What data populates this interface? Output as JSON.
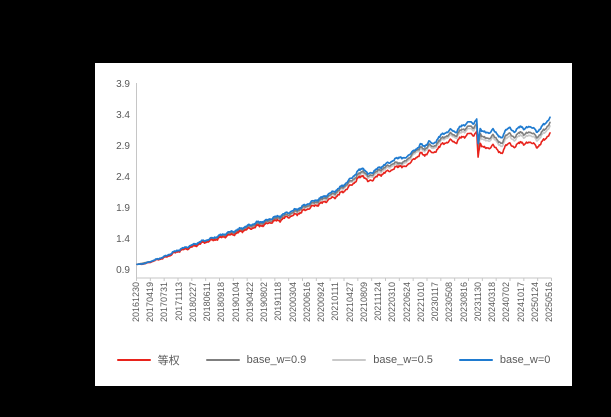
{
  "canvas": {
    "background": "#000000",
    "panel_background": "#ffffff",
    "axis_color": "#c6c6c6",
    "text_color": "#595959"
  },
  "chart_data": {
    "type": "line",
    "title": "",
    "xlabel": "",
    "ylabel": "",
    "grid": false,
    "legend_position": "bottom",
    "y_axis": {
      "min": 0.9,
      "max": 3.9,
      "ticks": [
        3.9,
        3.4,
        2.9,
        2.4,
        1.9,
        1.4,
        0.9
      ]
    },
    "x_axis": {
      "rotation": -90,
      "labels": [
        "20161230",
        "20170419",
        "20170731",
        "20171113",
        "20180227",
        "20180611",
        "20180918",
        "20190104",
        "20190422",
        "20190802",
        "20191118",
        "20200304",
        "20200616",
        "20200924",
        "20210111",
        "20210427",
        "20210809",
        "20211124",
        "20220310",
        "20220624",
        "20221010",
        "20230117",
        "20230508",
        "20230816",
        "20231130",
        "20240318",
        "20240702",
        "20241017",
        "20250124",
        "20250516"
      ]
    },
    "texture": {
      "amps": [
        0.013,
        0.008,
        0.005,
        0.004
      ],
      "freqs": [
        9.7,
        21.3,
        47.1,
        83.0
      ],
      "phases": [
        1.3,
        4.1,
        2.2,
        0.7
      ],
      "ramp": 2
    },
    "series": [
      {
        "name": "等权",
        "color": "#e8231c",
        "width": 1.6,
        "wiggle_scale": 1.15,
        "anchors": [
          [
            0,
            1.0
          ],
          [
            0.5,
            1.005
          ],
          [
            1,
            1.04
          ],
          [
            1.5,
            1.08
          ],
          [
            2,
            1.11
          ],
          [
            2.5,
            1.17
          ],
          [
            3,
            1.22
          ],
          [
            3.5,
            1.25
          ],
          [
            4,
            1.29
          ],
          [
            4.5,
            1.34
          ],
          [
            5,
            1.37
          ],
          [
            5.5,
            1.4
          ],
          [
            6,
            1.44
          ],
          [
            6.5,
            1.47
          ],
          [
            7,
            1.5
          ],
          [
            7.5,
            1.55
          ],
          [
            8,
            1.58
          ],
          [
            8.5,
            1.62
          ],
          [
            9,
            1.64
          ],
          [
            9.5,
            1.69
          ],
          [
            10,
            1.71
          ],
          [
            10.5,
            1.76
          ],
          [
            11,
            1.79
          ],
          [
            11.5,
            1.84
          ],
          [
            12,
            1.9
          ],
          [
            12.5,
            1.95
          ],
          [
            13,
            1.99
          ],
          [
            13.5,
            2.05
          ],
          [
            14,
            2.1
          ],
          [
            14.5,
            2.18
          ],
          [
            15,
            2.27
          ],
          [
            15.6,
            2.4
          ],
          [
            15.9,
            2.44
          ],
          [
            16.2,
            2.33
          ],
          [
            16.6,
            2.38
          ],
          [
            17,
            2.44
          ],
          [
            17.5,
            2.49
          ],
          [
            18,
            2.54
          ],
          [
            18.5,
            2.6
          ],
          [
            18.8,
            2.56
          ],
          [
            19.2,
            2.66
          ],
          [
            19.6,
            2.71
          ],
          [
            19.9,
            2.81
          ],
          [
            20.2,
            2.74
          ],
          [
            20.5,
            2.85
          ],
          [
            20.8,
            2.78
          ],
          [
            21.2,
            2.9
          ],
          [
            21.6,
            2.96
          ],
          [
            22,
            3.0
          ],
          [
            22.4,
            2.97
          ],
          [
            22.7,
            3.04
          ],
          [
            23,
            3.07
          ],
          [
            23.3,
            3.11
          ],
          [
            23.6,
            3.09
          ],
          [
            23.85,
            3.14
          ],
          [
            23.95,
            2.73
          ],
          [
            24.1,
            2.94
          ],
          [
            24.4,
            2.9
          ],
          [
            24.7,
            2.85
          ],
          [
            25,
            2.95
          ],
          [
            25.3,
            2.83
          ],
          [
            25.6,
            2.8
          ],
          [
            25.9,
            2.91
          ],
          [
            26.2,
            2.97
          ],
          [
            26.5,
            2.87
          ],
          [
            26.9,
            3.0
          ],
          [
            27.2,
            2.92
          ],
          [
            27.5,
            2.99
          ],
          [
            27.8,
            2.95
          ],
          [
            28.1,
            2.89
          ],
          [
            28.4,
            2.97
          ],
          [
            28.7,
            3.03
          ],
          [
            29,
            3.13
          ]
        ]
      },
      {
        "name": "base_w=0.9",
        "color": "#7f7f7f",
        "width": 1.6,
        "wiggle_scale": 1.0,
        "anchors": [
          [
            0,
            1.0
          ],
          [
            1,
            1.045
          ],
          [
            2,
            1.125
          ],
          [
            3,
            1.23
          ],
          [
            4,
            1.31
          ],
          [
            5,
            1.39
          ],
          [
            6,
            1.465
          ],
          [
            7,
            1.53
          ],
          [
            8,
            1.62
          ],
          [
            9,
            1.68
          ],
          [
            10,
            1.755
          ],
          [
            11,
            1.84
          ],
          [
            12,
            1.95
          ],
          [
            13,
            2.05
          ],
          [
            14,
            2.165
          ],
          [
            15,
            2.34
          ],
          [
            15.9,
            2.52
          ],
          [
            16.2,
            2.41
          ],
          [
            17,
            2.52
          ],
          [
            18,
            2.63
          ],
          [
            18.8,
            2.65
          ],
          [
            19.2,
            2.75
          ],
          [
            19.9,
            2.9
          ],
          [
            20.2,
            2.84
          ],
          [
            20.5,
            2.95
          ],
          [
            20.8,
            2.88
          ],
          [
            21.2,
            3.0
          ],
          [
            21.6,
            3.06
          ],
          [
            22,
            3.11
          ],
          [
            22.4,
            3.08
          ],
          [
            22.7,
            3.16
          ],
          [
            23,
            3.19
          ],
          [
            23.3,
            3.23
          ],
          [
            23.6,
            3.21
          ],
          [
            23.85,
            3.27
          ],
          [
            23.95,
            2.87
          ],
          [
            24.1,
            3.1
          ],
          [
            24.4,
            3.06
          ],
          [
            24.7,
            3.01
          ],
          [
            25,
            3.11
          ],
          [
            25.3,
            2.99
          ],
          [
            25.6,
            2.96
          ],
          [
            25.9,
            3.07
          ],
          [
            26.2,
            3.13
          ],
          [
            26.5,
            3.03
          ],
          [
            26.9,
            3.16
          ],
          [
            27.2,
            3.08
          ],
          [
            27.5,
            3.15
          ],
          [
            27.8,
            3.11
          ],
          [
            28.1,
            3.05
          ],
          [
            28.4,
            3.13
          ],
          [
            28.7,
            3.19
          ],
          [
            29,
            3.3
          ]
        ]
      },
      {
        "name": "base_w=0.5",
        "color": "#c9c9c9",
        "width": 1.6,
        "wiggle_scale": 1.0,
        "anchors": [
          [
            0,
            1.0
          ],
          [
            1,
            1.042
          ],
          [
            2,
            1.12
          ],
          [
            3,
            1.226
          ],
          [
            4,
            1.304
          ],
          [
            5,
            1.382
          ],
          [
            6,
            1.457
          ],
          [
            7,
            1.52
          ],
          [
            8,
            1.607
          ],
          [
            9,
            1.665
          ],
          [
            10,
            1.74
          ],
          [
            11,
            1.825
          ],
          [
            12,
            1.934
          ],
          [
            13,
            2.03
          ],
          [
            14,
            2.145
          ],
          [
            15,
            2.32
          ],
          [
            15.9,
            2.494
          ],
          [
            16.2,
            2.384
          ],
          [
            17,
            2.49
          ],
          [
            18,
            2.6
          ],
          [
            18.8,
            2.62
          ],
          [
            19.2,
            2.72
          ],
          [
            19.9,
            2.87
          ],
          [
            20.2,
            2.81
          ],
          [
            20.5,
            2.92
          ],
          [
            20.8,
            2.85
          ],
          [
            21.2,
            2.97
          ],
          [
            21.6,
            3.03
          ],
          [
            22,
            3.08
          ],
          [
            22.4,
            3.05
          ],
          [
            22.7,
            3.12
          ],
          [
            23,
            3.15
          ],
          [
            23.3,
            3.19
          ],
          [
            23.6,
            3.17
          ],
          [
            23.85,
            3.23
          ],
          [
            23.95,
            2.82
          ],
          [
            24.1,
            3.05
          ],
          [
            24.4,
            3.02
          ],
          [
            24.7,
            2.97
          ],
          [
            25,
            3.07
          ],
          [
            25.3,
            2.95
          ],
          [
            25.6,
            2.91
          ],
          [
            25.9,
            3.02
          ],
          [
            26.2,
            3.08
          ],
          [
            26.5,
            2.98
          ],
          [
            26.9,
            3.11
          ],
          [
            27.2,
            3.03
          ],
          [
            27.5,
            3.1
          ],
          [
            27.8,
            3.06
          ],
          [
            28.1,
            3.0
          ],
          [
            28.4,
            3.08
          ],
          [
            28.7,
            3.14
          ],
          [
            29,
            3.24
          ]
        ]
      },
      {
        "name": "base_w=0",
        "color": "#1f7bd0",
        "width": 1.7,
        "wiggle_scale": 0.95,
        "anchors": [
          [
            0,
            1.0
          ],
          [
            0.5,
            1.01
          ],
          [
            1,
            1.05
          ],
          [
            1.5,
            1.09
          ],
          [
            2,
            1.13
          ],
          [
            2.5,
            1.19
          ],
          [
            3,
            1.24
          ],
          [
            3.5,
            1.28
          ],
          [
            4,
            1.32
          ],
          [
            4.5,
            1.37
          ],
          [
            5,
            1.4
          ],
          [
            5.5,
            1.44
          ],
          [
            6,
            1.48
          ],
          [
            6.5,
            1.52
          ],
          [
            7,
            1.55
          ],
          [
            7.5,
            1.6
          ],
          [
            8,
            1.64
          ],
          [
            8.5,
            1.68
          ],
          [
            9,
            1.7
          ],
          [
            9.5,
            1.75
          ],
          [
            10,
            1.78
          ],
          [
            10.5,
            1.83
          ],
          [
            11,
            1.87
          ],
          [
            11.5,
            1.92
          ],
          [
            12,
            1.98
          ],
          [
            12.5,
            2.03
          ],
          [
            13,
            2.08
          ],
          [
            13.5,
            2.14
          ],
          [
            14,
            2.2
          ],
          [
            14.5,
            2.28
          ],
          [
            15,
            2.38
          ],
          [
            15.6,
            2.52
          ],
          [
            15.9,
            2.56
          ],
          [
            16.2,
            2.45
          ],
          [
            16.6,
            2.5
          ],
          [
            17,
            2.56
          ],
          [
            17.5,
            2.62
          ],
          [
            18,
            2.68
          ],
          [
            18.5,
            2.74
          ],
          [
            18.8,
            2.7
          ],
          [
            19.2,
            2.8
          ],
          [
            19.6,
            2.85
          ],
          [
            19.9,
            2.95
          ],
          [
            20.2,
            2.89
          ],
          [
            20.5,
            3.0
          ],
          [
            20.8,
            2.93
          ],
          [
            21.2,
            3.06
          ],
          [
            21.6,
            3.12
          ],
          [
            22,
            3.17
          ],
          [
            22.4,
            3.14
          ],
          [
            22.7,
            3.22
          ],
          [
            23,
            3.26
          ],
          [
            23.3,
            3.3
          ],
          [
            23.6,
            3.28
          ],
          [
            23.85,
            3.34
          ],
          [
            23.95,
            2.95
          ],
          [
            24.1,
            3.18
          ],
          [
            24.4,
            3.15
          ],
          [
            24.7,
            3.1
          ],
          [
            25,
            3.2
          ],
          [
            25.3,
            3.08
          ],
          [
            25.6,
            3.05
          ],
          [
            25.9,
            3.16
          ],
          [
            26.2,
            3.22
          ],
          [
            26.5,
            3.12
          ],
          [
            26.9,
            3.25
          ],
          [
            27.2,
            3.17
          ],
          [
            27.5,
            3.24
          ],
          [
            27.8,
            3.2
          ],
          [
            28.1,
            3.14
          ],
          [
            28.4,
            3.22
          ],
          [
            28.7,
            3.28
          ],
          [
            29,
            3.38
          ]
        ]
      }
    ]
  }
}
